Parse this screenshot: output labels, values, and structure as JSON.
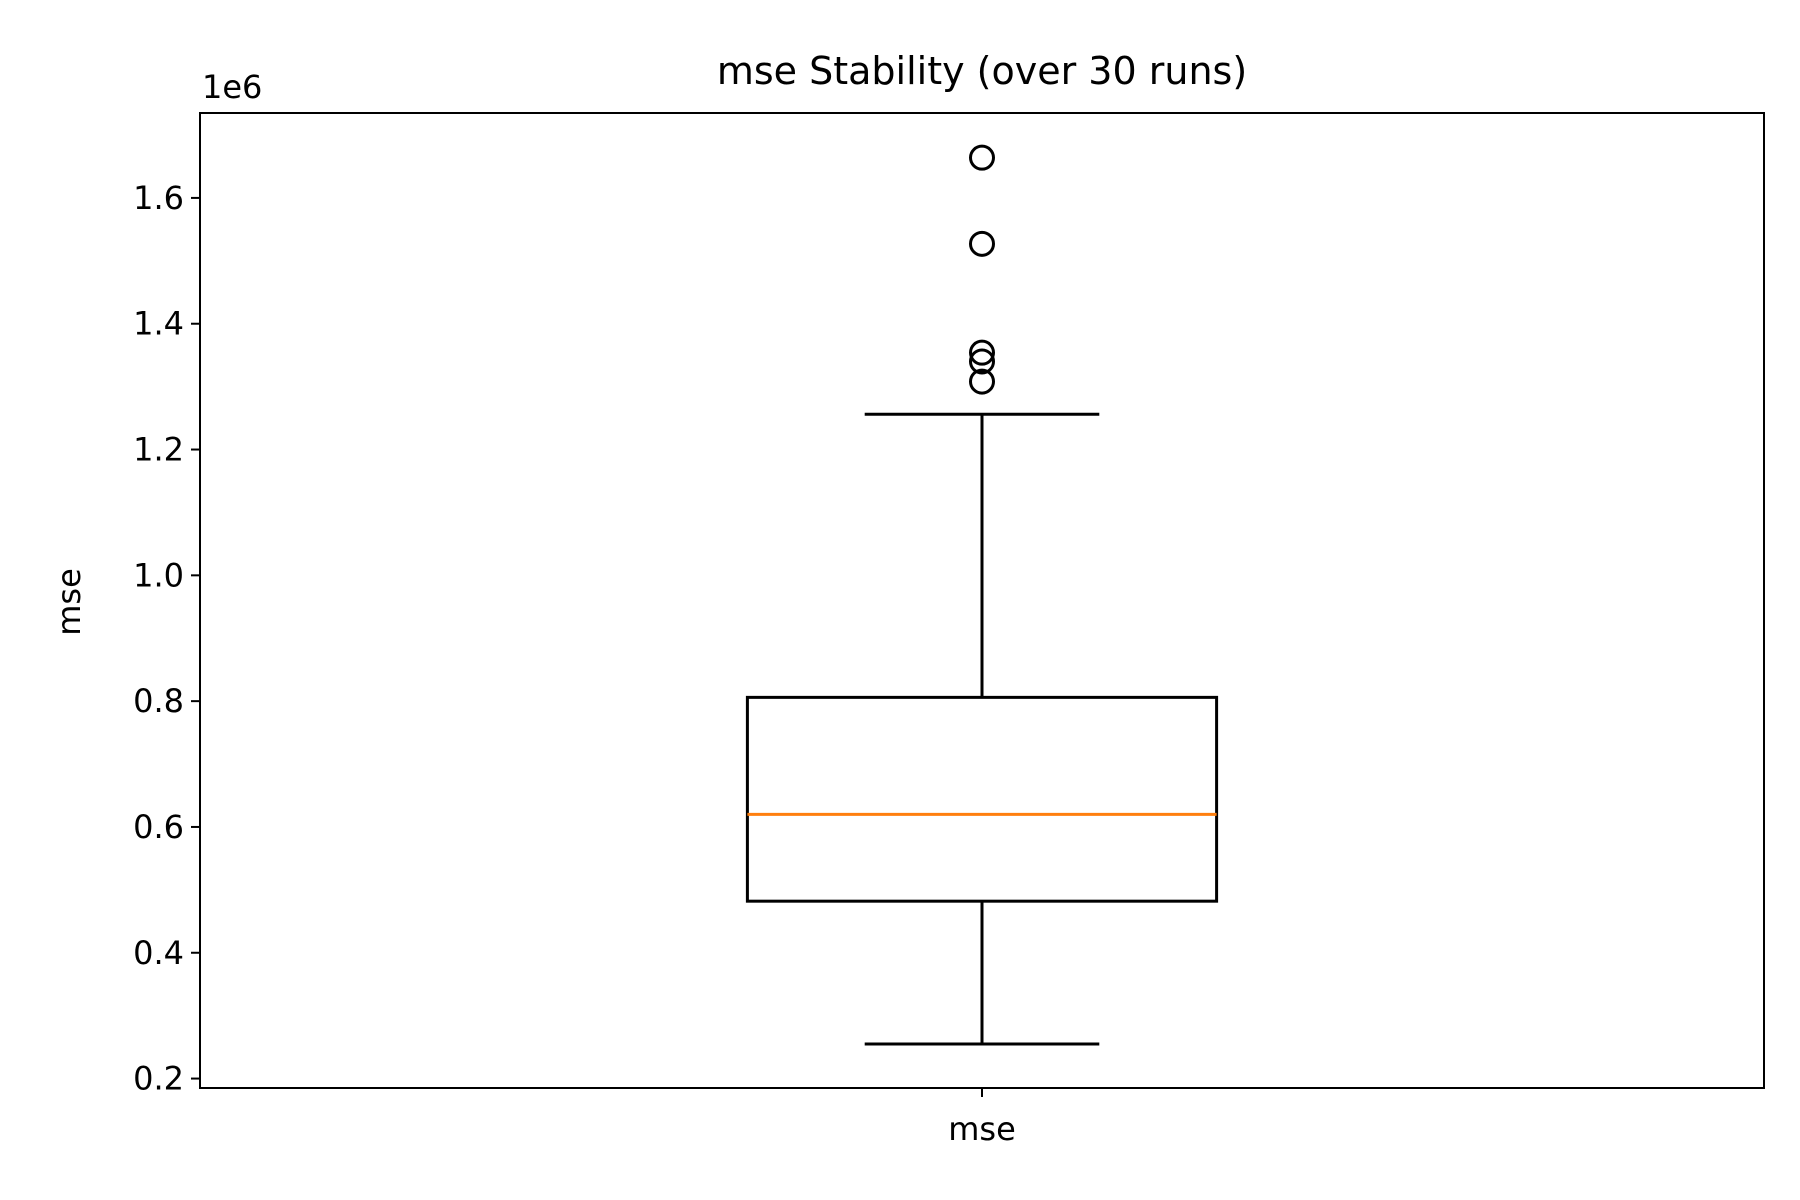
{
  "chart_data": {
    "type": "box",
    "title": "mse Stability (over 30 runs)",
    "xlabel": "",
    "ylabel": "mse",
    "y_offset_label": "1e6",
    "y_scale_factor": 1000000,
    "categories": [
      "mse"
    ],
    "ylim": [
      0.185,
      1.735
    ],
    "yticks": [
      0.2,
      0.4,
      0.6,
      0.8,
      1.0,
      1.2,
      1.4,
      1.6
    ],
    "ytick_labels": [
      "0.2",
      "0.4",
      "0.6",
      "0.8",
      "1.0",
      "1.2",
      "1.4",
      "1.6"
    ],
    "boxes": [
      {
        "name": "mse",
        "whisker_low": 0.255,
        "q1": 0.482,
        "median": 0.62,
        "q3": 0.806,
        "whisker_high": 1.256,
        "outliers": [
          1.664,
          1.527,
          1.354,
          1.34,
          1.308
        ]
      }
    ],
    "grid": false,
    "colors": {
      "box": "#000000",
      "median": "#ff7f0e",
      "outlier": "#000000"
    }
  }
}
